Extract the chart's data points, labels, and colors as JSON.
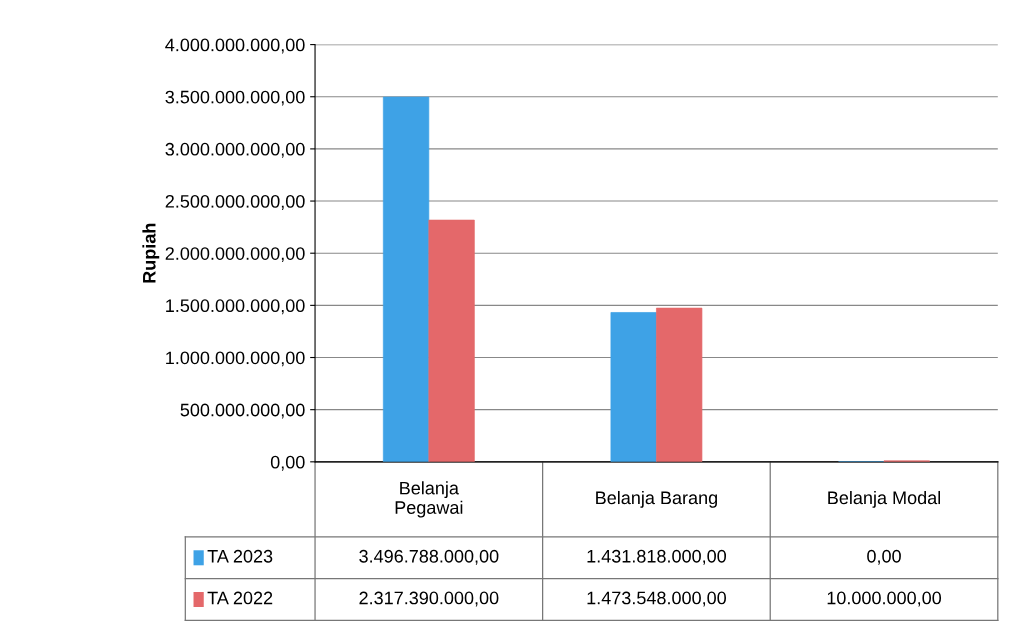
{
  "chart_data": {
    "type": "bar",
    "ylabel": "Rupiah",
    "categories": [
      "Belanja\nPegawai",
      "Belanja Barang",
      "Belanja Modal"
    ],
    "series": [
      {
        "name": "TA 2023",
        "color": "#3ea2e6",
        "values": [
          3496788000,
          1431818000,
          0
        ],
        "value_labels": [
          "3.496.788.000,00",
          "1.431.818.000,00",
          "0,00"
        ]
      },
      {
        "name": "TA 2022",
        "color": "#e4686a",
        "values": [
          2317390000,
          1473548000,
          10000000
        ],
        "value_labels": [
          "2.317.390.000,00",
          "1.473.548.000,00",
          "10.000.000,00"
        ]
      }
    ],
    "ylim": [
      0,
      4000000000
    ],
    "yticks": [
      {
        "value": 0,
        "label": "0,00"
      },
      {
        "value": 500000000,
        "label": "500.000.000,00"
      },
      {
        "value": 1000000000,
        "label": "1.000.000.000,00"
      },
      {
        "value": 1500000000,
        "label": "1.500.000.000,00"
      },
      {
        "value": 2000000000,
        "label": "2.000.000.000,00"
      },
      {
        "value": 2500000000,
        "label": "2.500.000.000,00"
      },
      {
        "value": 3000000000,
        "label": "3.000.000.000,00"
      },
      {
        "value": 3500000000,
        "label": "3.500.000.000,00"
      },
      {
        "value": 4000000000,
        "label": "4.000.000.000,00"
      }
    ],
    "grid": "y",
    "legend": "bottom"
  }
}
